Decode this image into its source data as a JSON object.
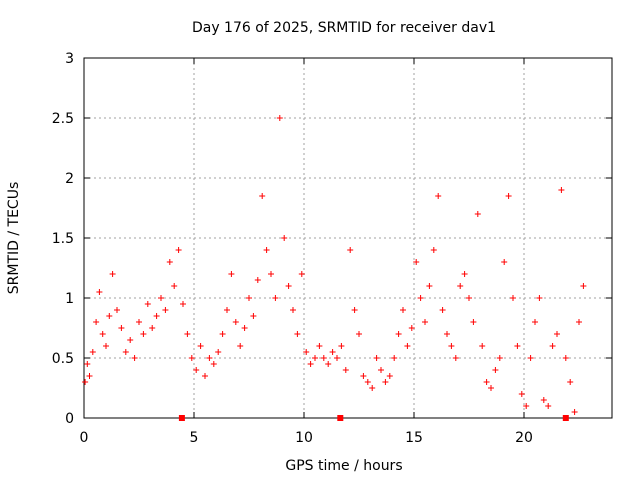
{
  "chart_data": {
    "type": "scatter",
    "title": "Day 176 of 2025, SRMTID for receiver dav1",
    "xlabel": "GPS time / hours",
    "ylabel": "SRMTID / TECUs",
    "xlim": [
      0,
      24
    ],
    "ylim": [
      0,
      3
    ],
    "x_ticks": [
      0,
      5,
      10,
      15,
      20
    ],
    "x_tick_labels": [
      "0",
      "5",
      "10",
      "15",
      "20"
    ],
    "y_ticks": [
      0,
      0.5,
      1,
      1.5,
      2,
      2.5,
      3
    ],
    "y_tick_labels": [
      "0",
      "0.5",
      "1",
      "1.5",
      "2",
      "2.5",
      "3"
    ],
    "grid": true,
    "series": [
      {
        "name": "SRMTID",
        "color": "#ff0000",
        "marker": "+",
        "x": [
          0.05,
          0.15,
          0.25,
          0.4,
          0.55,
          0.7,
          0.85,
          1.0,
          1.15,
          1.3,
          1.5,
          1.7,
          1.9,
          2.1,
          2.3,
          2.5,
          2.7,
          2.9,
          3.1,
          3.3,
          3.5,
          3.7,
          3.9,
          4.1,
          4.3,
          4.5,
          4.7,
          4.9,
          5.1,
          5.3,
          5.5,
          5.7,
          5.9,
          6.1,
          6.3,
          6.5,
          6.7,
          6.9,
          7.1,
          7.3,
          7.5,
          7.7,
          7.9,
          8.1,
          8.3,
          8.5,
          8.7,
          8.9,
          9.1,
          9.3,
          9.5,
          9.7,
          9.9,
          10.1,
          10.3,
          10.5,
          10.7,
          10.9,
          11.1,
          11.3,
          11.5,
          11.7,
          11.9,
          12.1,
          12.3,
          12.5,
          12.7,
          12.9,
          13.1,
          13.3,
          13.5,
          13.7,
          13.9,
          14.1,
          14.3,
          14.5,
          14.7,
          14.9,
          15.1,
          15.3,
          15.5,
          15.7,
          15.9,
          16.1,
          16.3,
          16.5,
          16.7,
          16.9,
          17.1,
          17.3,
          17.5,
          17.7,
          17.9,
          18.1,
          18.3,
          18.5,
          18.7,
          18.9,
          19.1,
          19.3,
          19.5,
          19.7,
          19.9,
          20.1,
          20.3,
          20.5,
          20.7,
          20.9,
          21.1,
          21.3,
          21.5,
          21.7,
          21.9,
          22.1,
          22.3,
          22.5,
          22.7
        ],
        "y": [
          0.3,
          0.45,
          0.35,
          0.55,
          0.8,
          1.05,
          0.7,
          0.6,
          0.85,
          1.2,
          0.9,
          0.75,
          0.55,
          0.65,
          0.5,
          0.8,
          0.7,
          0.95,
          0.75,
          0.85,
          1.0,
          0.9,
          1.3,
          1.1,
          1.4,
          0.95,
          0.7,
          0.5,
          0.4,
          0.6,
          0.35,
          0.5,
          0.45,
          0.55,
          0.7,
          0.9,
          1.2,
          0.8,
          0.6,
          0.75,
          1.0,
          0.85,
          1.15,
          1.85,
          1.4,
          1.2,
          1.0,
          2.5,
          1.5,
          1.1,
          0.9,
          0.7,
          1.2,
          0.55,
          0.45,
          0.5,
          0.6,
          0.5,
          0.45,
          0.55,
          0.5,
          0.6,
          0.4,
          1.4,
          0.9,
          0.7,
          0.35,
          0.3,
          0.25,
          0.5,
          0.4,
          0.3,
          0.35,
          0.5,
          0.7,
          0.9,
          0.6,
          0.75,
          1.3,
          1.0,
          0.8,
          1.1,
          1.4,
          1.85,
          0.9,
          0.7,
          0.6,
          0.5,
          1.1,
          1.2,
          1.0,
          0.8,
          1.7,
          0.6,
          0.3,
          0.25,
          0.4,
          0.5,
          1.3,
          1.85,
          1.0,
          0.6,
          0.2,
          0.1,
          0.5,
          0.8,
          1.0,
          0.15,
          0.1,
          0.6,
          0.7,
          1.9,
          0.5,
          0.3,
          0.05,
          0.8,
          1.1
        ]
      },
      {
        "name": "markers-at-zero",
        "color": "#ff0000",
        "marker": "square",
        "x": [
          4.45,
          11.65,
          21.9
        ],
        "y": [
          0,
          0,
          0
        ]
      }
    ]
  }
}
